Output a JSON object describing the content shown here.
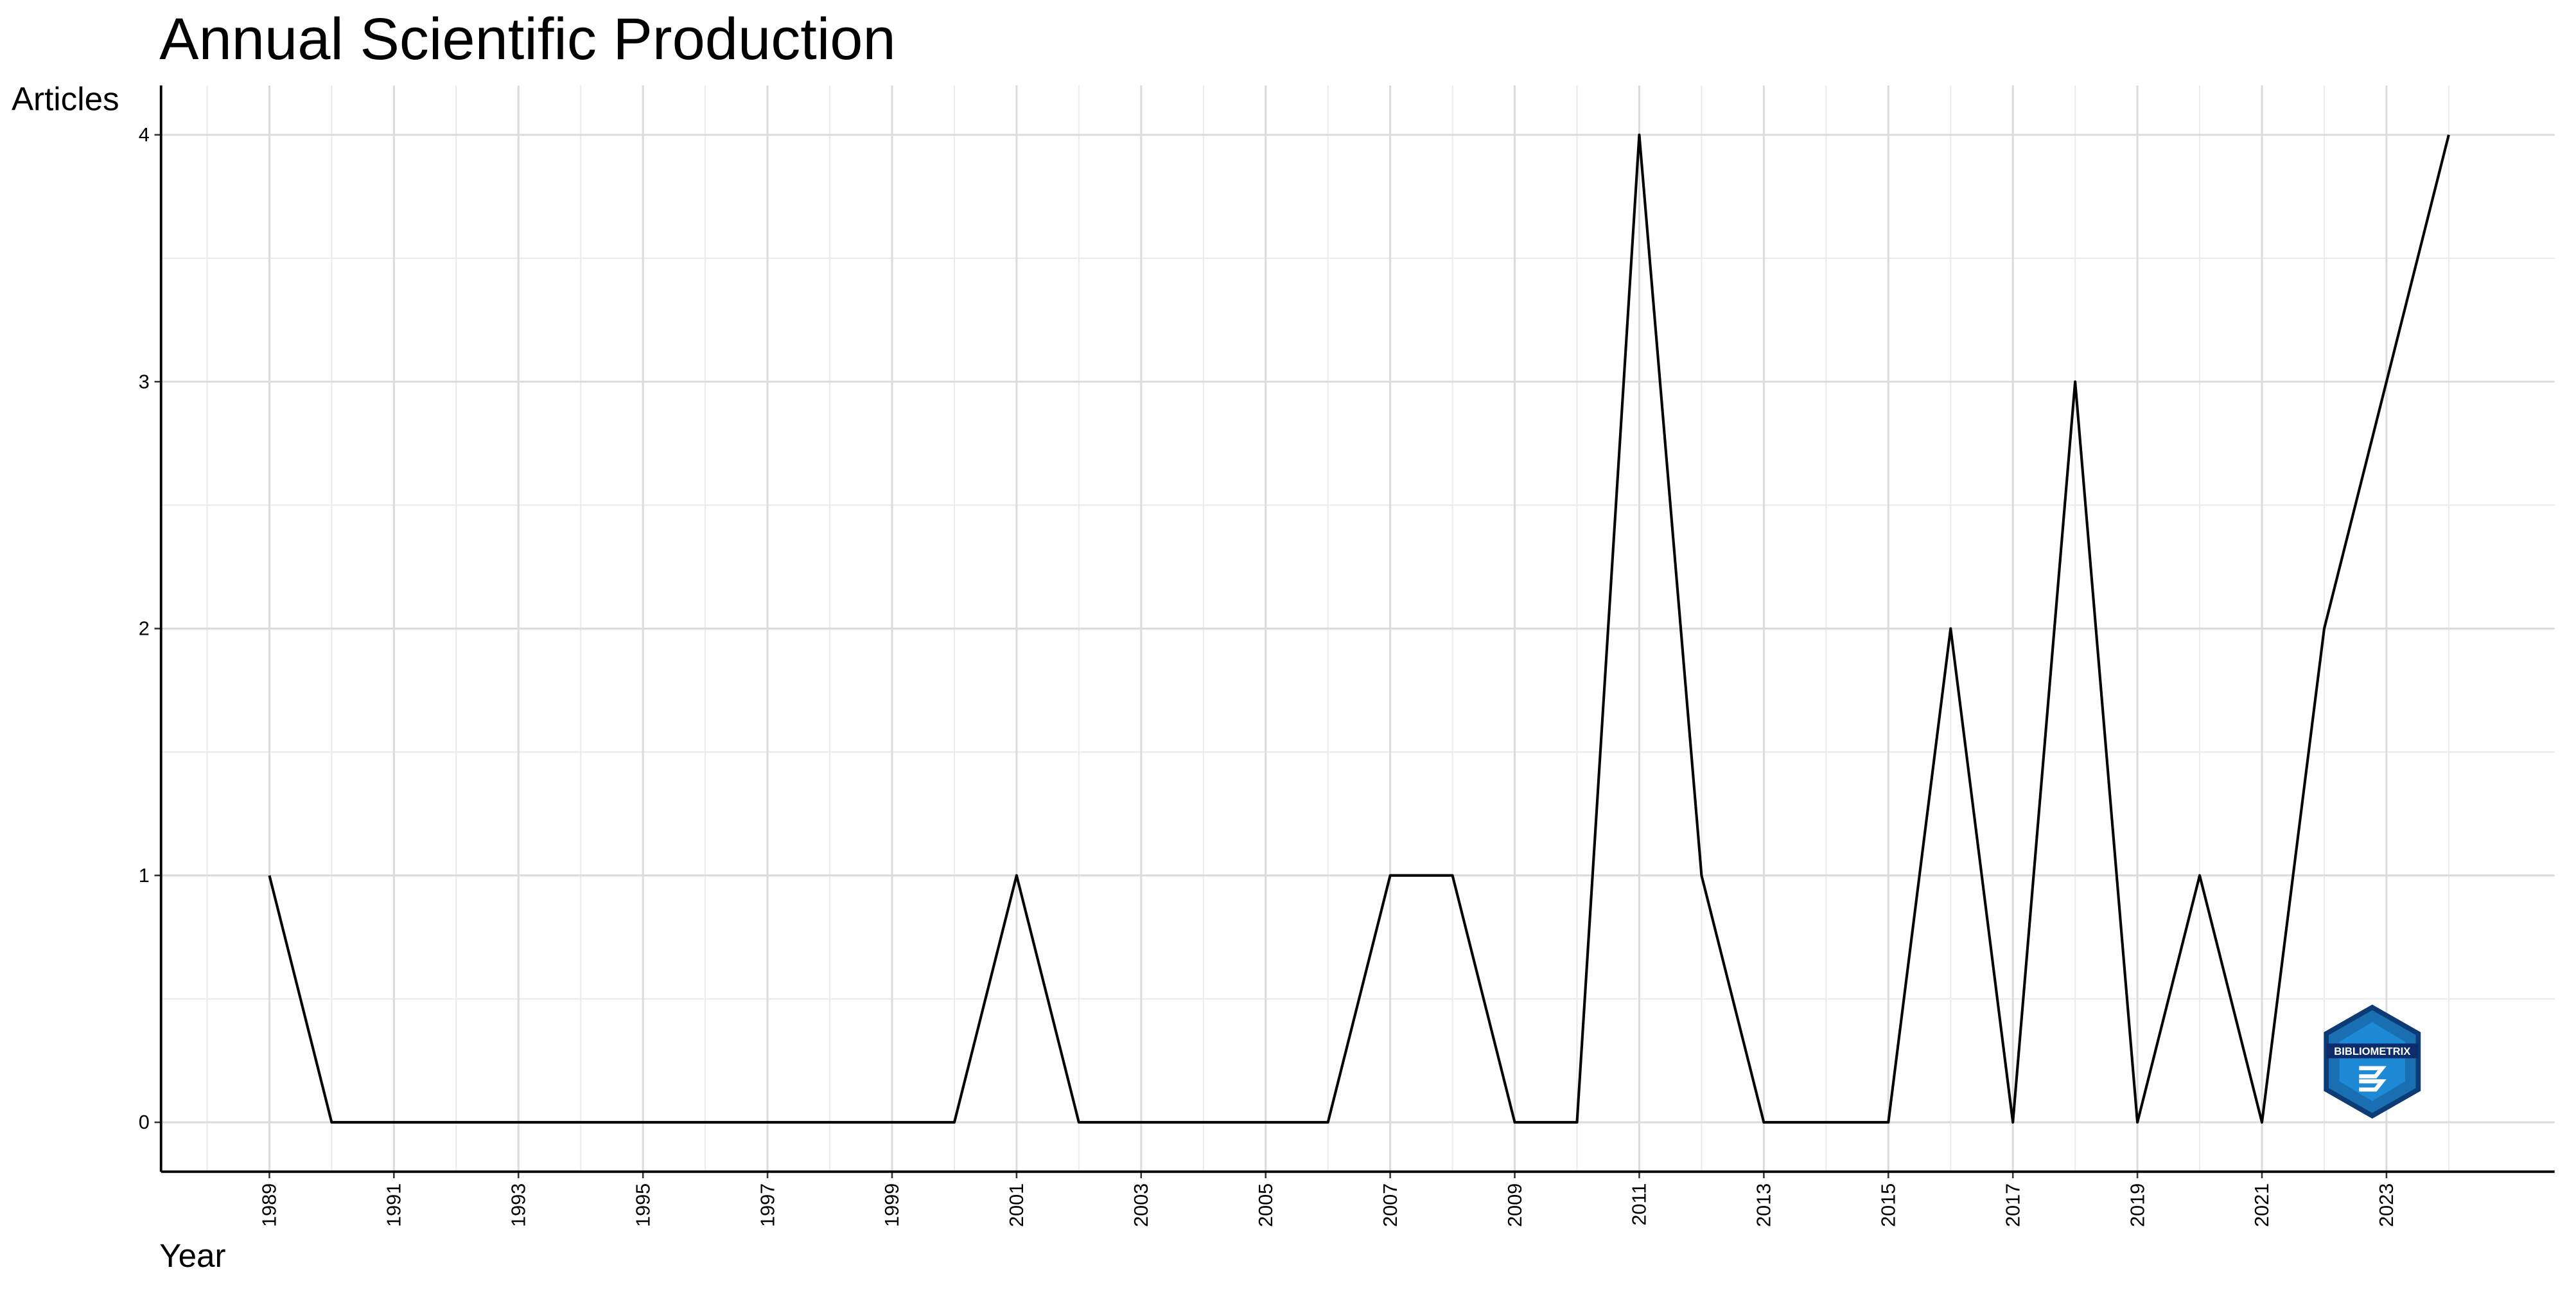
{
  "chart_data": {
    "type": "line",
    "title": "Annual Scientific Production",
    "x_label": "Year",
    "y_label": "Articles",
    "x": [
      1989,
      1990,
      1991,
      1992,
      1993,
      1994,
      1995,
      1996,
      1997,
      1998,
      1999,
      2000,
      2001,
      2002,
      2003,
      2004,
      2005,
      2006,
      2007,
      2008,
      2009,
      2010,
      2011,
      2012,
      2013,
      2014,
      2015,
      2016,
      2017,
      2018,
      2019,
      2020,
      2021,
      2022,
      2023,
      2024
    ],
    "values": [
      1,
      0,
      0,
      0,
      0,
      0,
      0,
      0,
      0,
      0,
      0,
      0,
      1,
      0,
      0,
      0,
      0,
      0,
      1,
      1,
      0,
      0,
      4,
      1,
      0,
      0,
      0,
      2,
      0,
      3,
      0,
      1,
      0,
      2,
      3,
      4
    ],
    "color": "#000000",
    "xlim": [
      1987.26,
      2025.7
    ],
    "xticks": [
      1989,
      1991,
      1993,
      1995,
      1997,
      1999,
      2001,
      2003,
      2005,
      2007,
      2009,
      2011,
      2013,
      2015,
      2017,
      2019,
      2021,
      2023
    ],
    "ylim": [
      -0.2,
      4.2
    ],
    "yticks": [
      0,
      1,
      2,
      3,
      4
    ],
    "grid": true,
    "watermark": "BIBLIOMETRIX"
  }
}
